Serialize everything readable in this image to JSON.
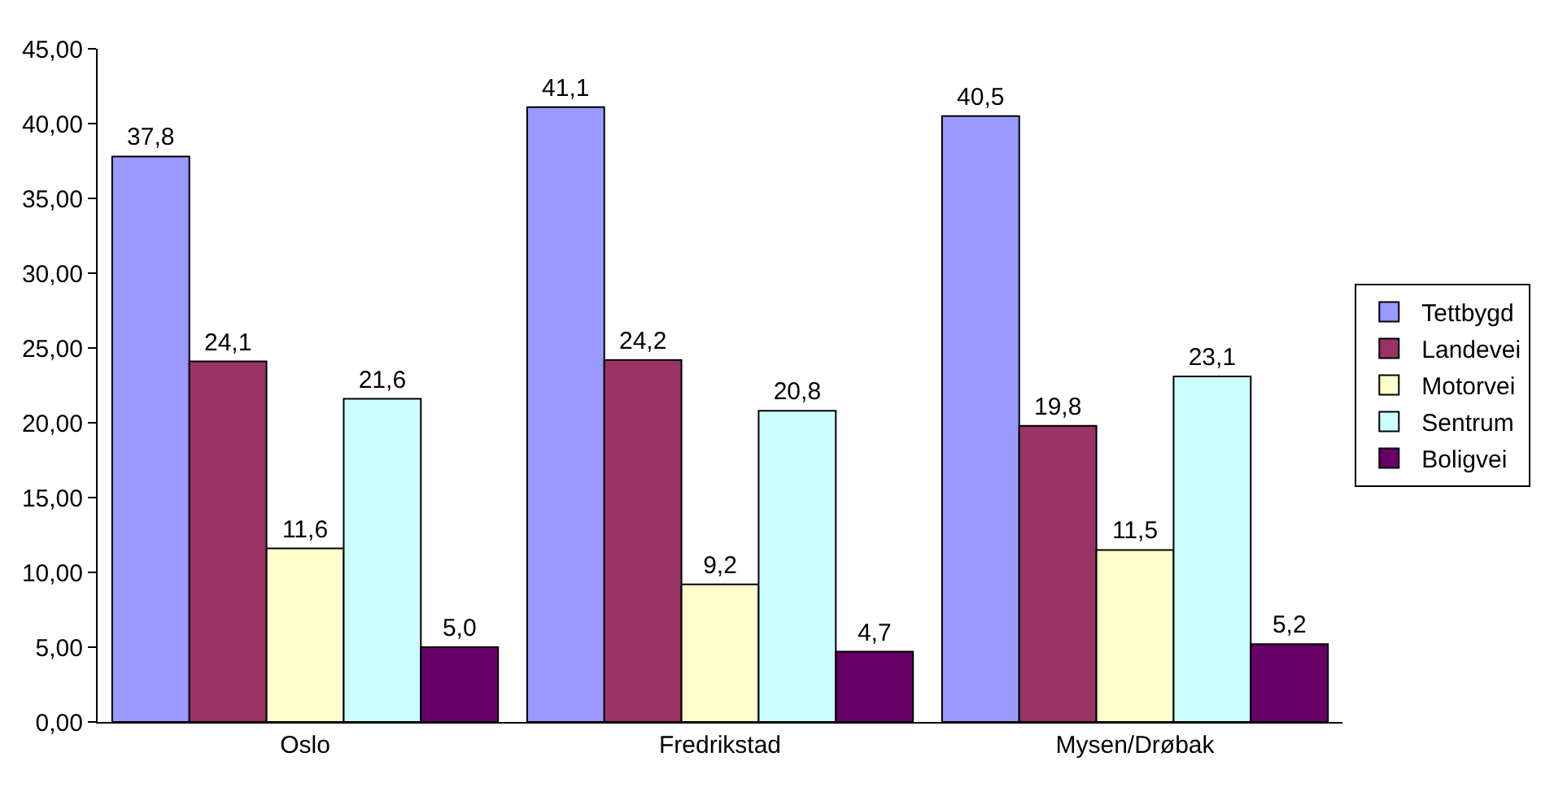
{
  "chart_data": {
    "type": "bar",
    "categories": [
      "Oslo",
      "Fredrikstad",
      "Mysen/Drøbak"
    ],
    "series": [
      {
        "name": "Tettbygd",
        "color": "#9999ff",
        "values": [
          37.8,
          41.1,
          40.5
        ],
        "value_labels": [
          "37,8",
          "41,1",
          "40,5"
        ]
      },
      {
        "name": "Landevei",
        "color": "#993366",
        "values": [
          24.1,
          24.2,
          19.8
        ],
        "value_labels": [
          "24,1",
          "24,2",
          "19,8"
        ]
      },
      {
        "name": "Motorvei",
        "color": "#ffffcc",
        "values": [
          11.6,
          9.2,
          11.5
        ],
        "value_labels": [
          "11,6",
          "9,2",
          "11,5"
        ]
      },
      {
        "name": "Sentrum",
        "color": "#ccffff",
        "values": [
          21.6,
          20.8,
          23.1
        ],
        "value_labels": [
          "21,6",
          "20,8",
          "23,1"
        ]
      },
      {
        "name": "Boligvei",
        "color": "#660066",
        "values": [
          5.0,
          4.7,
          5.2
        ],
        "value_labels": [
          "5,0",
          "4,7",
          "5,2"
        ]
      }
    ],
    "ylim": [
      0,
      45
    ],
    "yticks": [
      {
        "value": 0,
        "label": "0,00"
      },
      {
        "value": 5,
        "label": "5,00"
      },
      {
        "value": 10,
        "label": "10,00"
      },
      {
        "value": 15,
        "label": "15,00"
      },
      {
        "value": 20,
        "label": "20,00"
      },
      {
        "value": 25,
        "label": "25,00"
      },
      {
        "value": 30,
        "label": "30,00"
      },
      {
        "value": 35,
        "label": "35,00"
      },
      {
        "value": 40,
        "label": "40,00"
      },
      {
        "value": 45,
        "label": "45,00"
      }
    ],
    "grid": false,
    "legend": "right"
  }
}
